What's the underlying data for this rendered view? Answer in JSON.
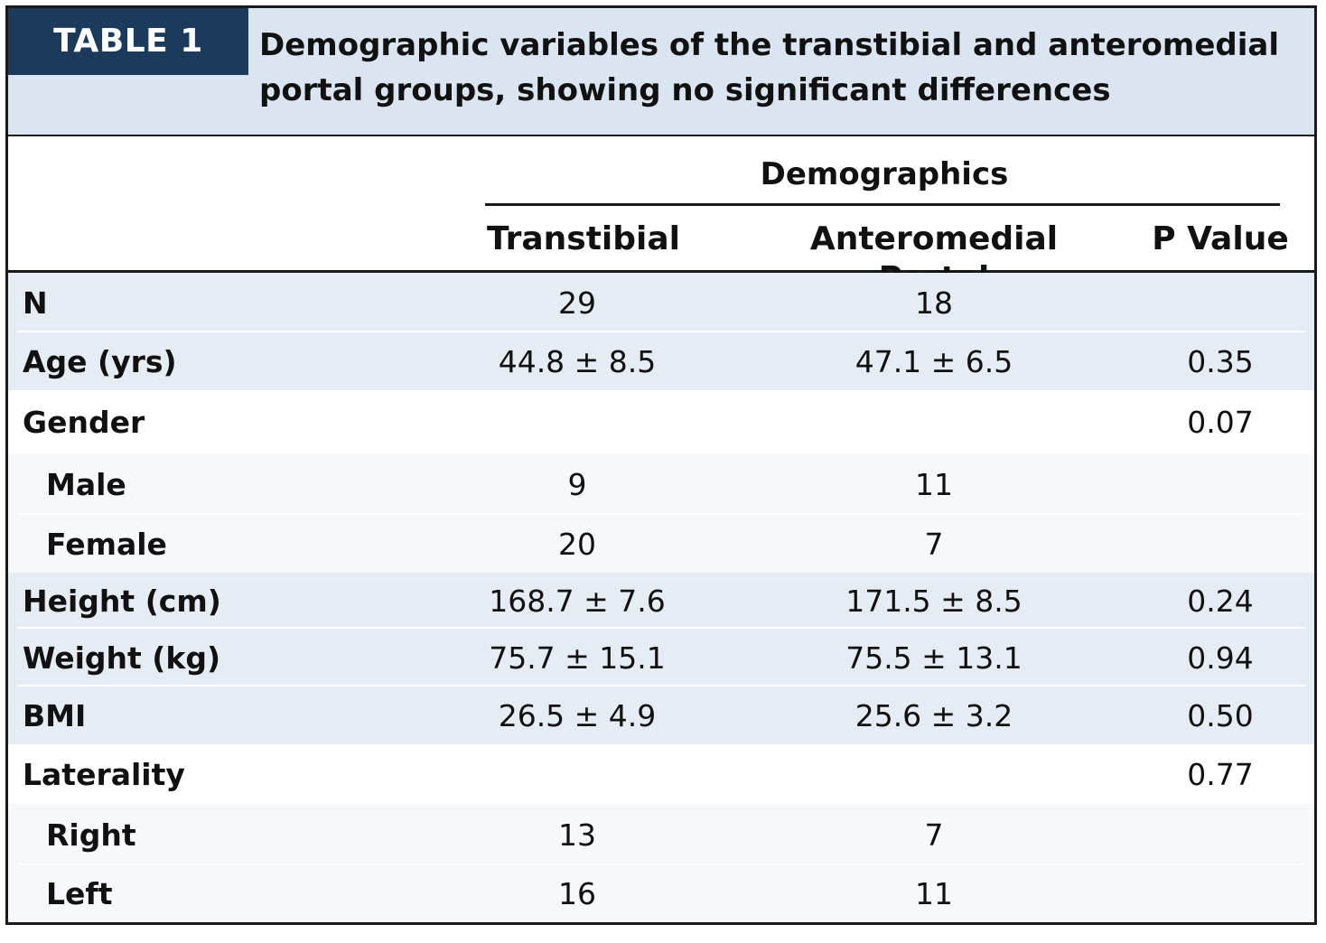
{
  "table": {
    "tag": "TABLE 1",
    "caption": "Demographic variables of the transtibial and anteromedial portal groups, showing no significant differences",
    "group_header": "Demographics",
    "columns": [
      "Transtibial",
      "Anteromedial Portal",
      "P Value"
    ],
    "rows": [
      {
        "label": "N",
        "transtibial": "29",
        "am": "18",
        "p": ""
      },
      {
        "label": "Age (yrs)",
        "transtibial": "44.8 ± 8.5",
        "am": "47.1 ± 6.5",
        "p": "0.35"
      },
      {
        "label": "Gender",
        "transtibial": "",
        "am": "",
        "p": "0.07"
      },
      {
        "label": "Male",
        "transtibial": "9",
        "am": "11",
        "p": ""
      },
      {
        "label": "Female",
        "transtibial": "20",
        "am": "7",
        "p": ""
      },
      {
        "label": "Height (cm)",
        "transtibial": "168.7 ± 7.6",
        "am": "171.5 ± 8.5",
        "p": "0.24"
      },
      {
        "label": "Weight (kg)",
        "transtibial": "75.7 ± 15.1",
        "am": "75.5 ± 13.1",
        "p": "0.94"
      },
      {
        "label": "BMI",
        "transtibial": "26.5 ± 4.9",
        "am": "25.6 ± 3.2",
        "p": "0.50"
      },
      {
        "label": "Laterality",
        "transtibial": "",
        "am": "",
        "p": "0.77"
      },
      {
        "label": "Right",
        "transtibial": "13",
        "am": "7",
        "p": ""
      },
      {
        "label": "Left",
        "transtibial": "16",
        "am": "11",
        "p": ""
      }
    ]
  },
  "colors": {
    "tag_background": "#1b3a5c",
    "caption_background": "#dbe5f1",
    "row_shaded": "#e6ecf4"
  }
}
